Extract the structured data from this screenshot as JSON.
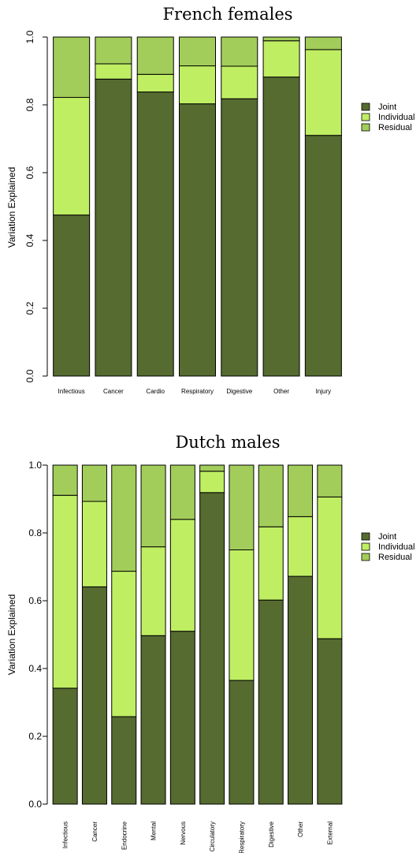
{
  "chart_data": [
    {
      "type": "bar",
      "stacked": true,
      "title": "French females",
      "ylabel": "Variation Explained",
      "xlabel": "",
      "ylim": [
        0,
        1
      ],
      "yticks": [
        "0.0",
        "0.2",
        "0.4",
        "0.6",
        "0.8",
        "1.0"
      ],
      "categories": [
        "Infectious",
        "Cancer",
        "Cardio",
        "Respiratory",
        "Digestive",
        "Other",
        "Injury"
      ],
      "series": [
        {
          "name": "Joint",
          "color": "#556b2f",
          "values": [
            0.475,
            0.876,
            0.838,
            0.803,
            0.818,
            0.882,
            0.71
          ]
        },
        {
          "name": "Individual",
          "color": "#bfee63",
          "values": [
            0.347,
            0.045,
            0.052,
            0.112,
            0.096,
            0.107,
            0.253
          ]
        },
        {
          "name": "Residual",
          "color": "#a2cd5a",
          "values": [
            0.178,
            0.079,
            0.11,
            0.085,
            0.086,
            0.011,
            0.037
          ]
        }
      ],
      "legend": {
        "position": "right",
        "items": [
          "Joint",
          "Individual",
          "Residual"
        ]
      }
    },
    {
      "type": "bar",
      "stacked": true,
      "title": "Dutch males",
      "ylabel": "Variation Explained",
      "xlabel": "",
      "ylim": [
        0,
        1
      ],
      "yticks": [
        "0.0",
        "0.2",
        "0.4",
        "0.6",
        "0.8",
        "1.0"
      ],
      "categories": [
        "Infectious",
        "Cancer",
        "Endocrine",
        "Mental",
        "Nervous",
        "Circulatory",
        "Respiratory",
        "Digestive",
        "Other",
        "External"
      ],
      "series": [
        {
          "name": "Joint",
          "color": "#556b2f",
          "values": [
            0.342,
            0.641,
            0.258,
            0.497,
            0.51,
            0.919,
            0.365,
            0.602,
            0.672,
            0.488
          ]
        },
        {
          "name": "Individual",
          "color": "#bfee63",
          "values": [
            0.569,
            0.252,
            0.429,
            0.262,
            0.33,
            0.063,
            0.385,
            0.216,
            0.176,
            0.418
          ]
        },
        {
          "name": "Residual",
          "color": "#a2cd5a",
          "values": [
            0.089,
            0.107,
            0.313,
            0.241,
            0.16,
            0.018,
            0.25,
            0.182,
            0.152,
            0.094
          ]
        }
      ],
      "legend": {
        "position": "right",
        "items": [
          "Joint",
          "Individual",
          "Residual"
        ]
      }
    }
  ]
}
